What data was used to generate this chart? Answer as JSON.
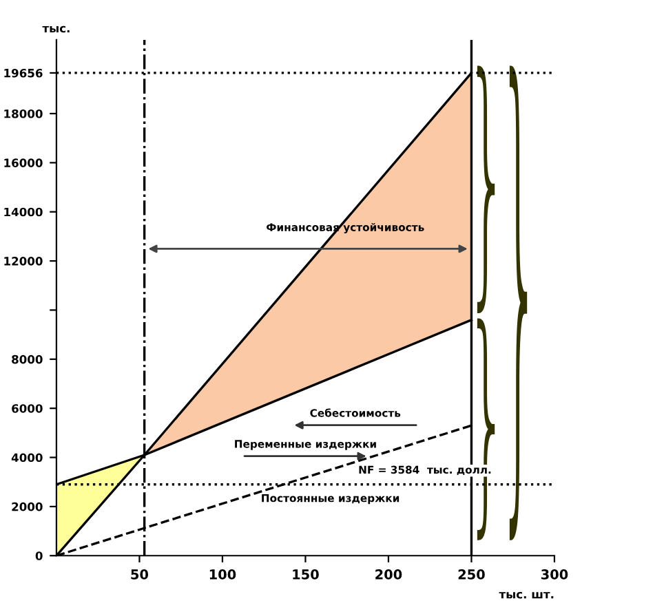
{
  "chart_data": {
    "type": "line",
    "ylabel": "тыс.",
    "xlabel": "тыс. шт.",
    "xlim": [
      0,
      300
    ],
    "xticks": [
      50,
      100,
      150,
      200,
      250,
      300
    ],
    "ylim": [
      0,
      21000
    ],
    "yticks": [
      0,
      2000,
      4000,
      6000,
      8000,
      {
        "value": 10000,
        "label": null
      },
      12000,
      14000,
      16000,
      18000,
      19656
    ],
    "grid": false,
    "marker": "none",
    "series": [
      {
        "type": "area",
        "color": "#ffff99",
        "x": [
          0,
          53
        ],
        "values": [
          2900,
          4100
        ]
      },
      {
        "type": "area",
        "color": "#fbc9a6",
        "x": [
          53,
          250
        ],
        "values": [
          4100,
          19656
        ]
      },
      {
        "color": "#000000",
        "line_style": "solid",
        "x": [
          0,
          53,
          250
        ],
        "values": [
          0,
          4100,
          19656
        ]
      },
      {
        "color": "#000000",
        "line_style": "solid",
        "x": [
          0,
          53,
          250
        ],
        "values": [
          2900,
          4100,
          9600
        ]
      },
      {
        "color": "#000000",
        "line_style": "dashed",
        "x": [
          0,
          250
        ],
        "values": [
          0,
          5300
        ]
      }
    ],
    "ref_lines": [
      {
        "axis": "y",
        "value": 19656,
        "line_style": "dotted",
        "color": "#000000"
      },
      {
        "axis": "y",
        "value": 2900,
        "line_style": "dotted",
        "color": "#000000"
      },
      {
        "axis": "x",
        "value": 53,
        "line_style": "dashdot",
        "color": "#000000"
      },
      {
        "axis": "x",
        "value": 250,
        "line_style": "solid",
        "color": "#000000"
      }
    ],
    "annotations": [
      "Финансовая устойчивость",
      "Себестоимость",
      "Переменные издержки",
      "NF = 3584  тыс. долл.",
      "Постоянные издержки"
    ]
  }
}
